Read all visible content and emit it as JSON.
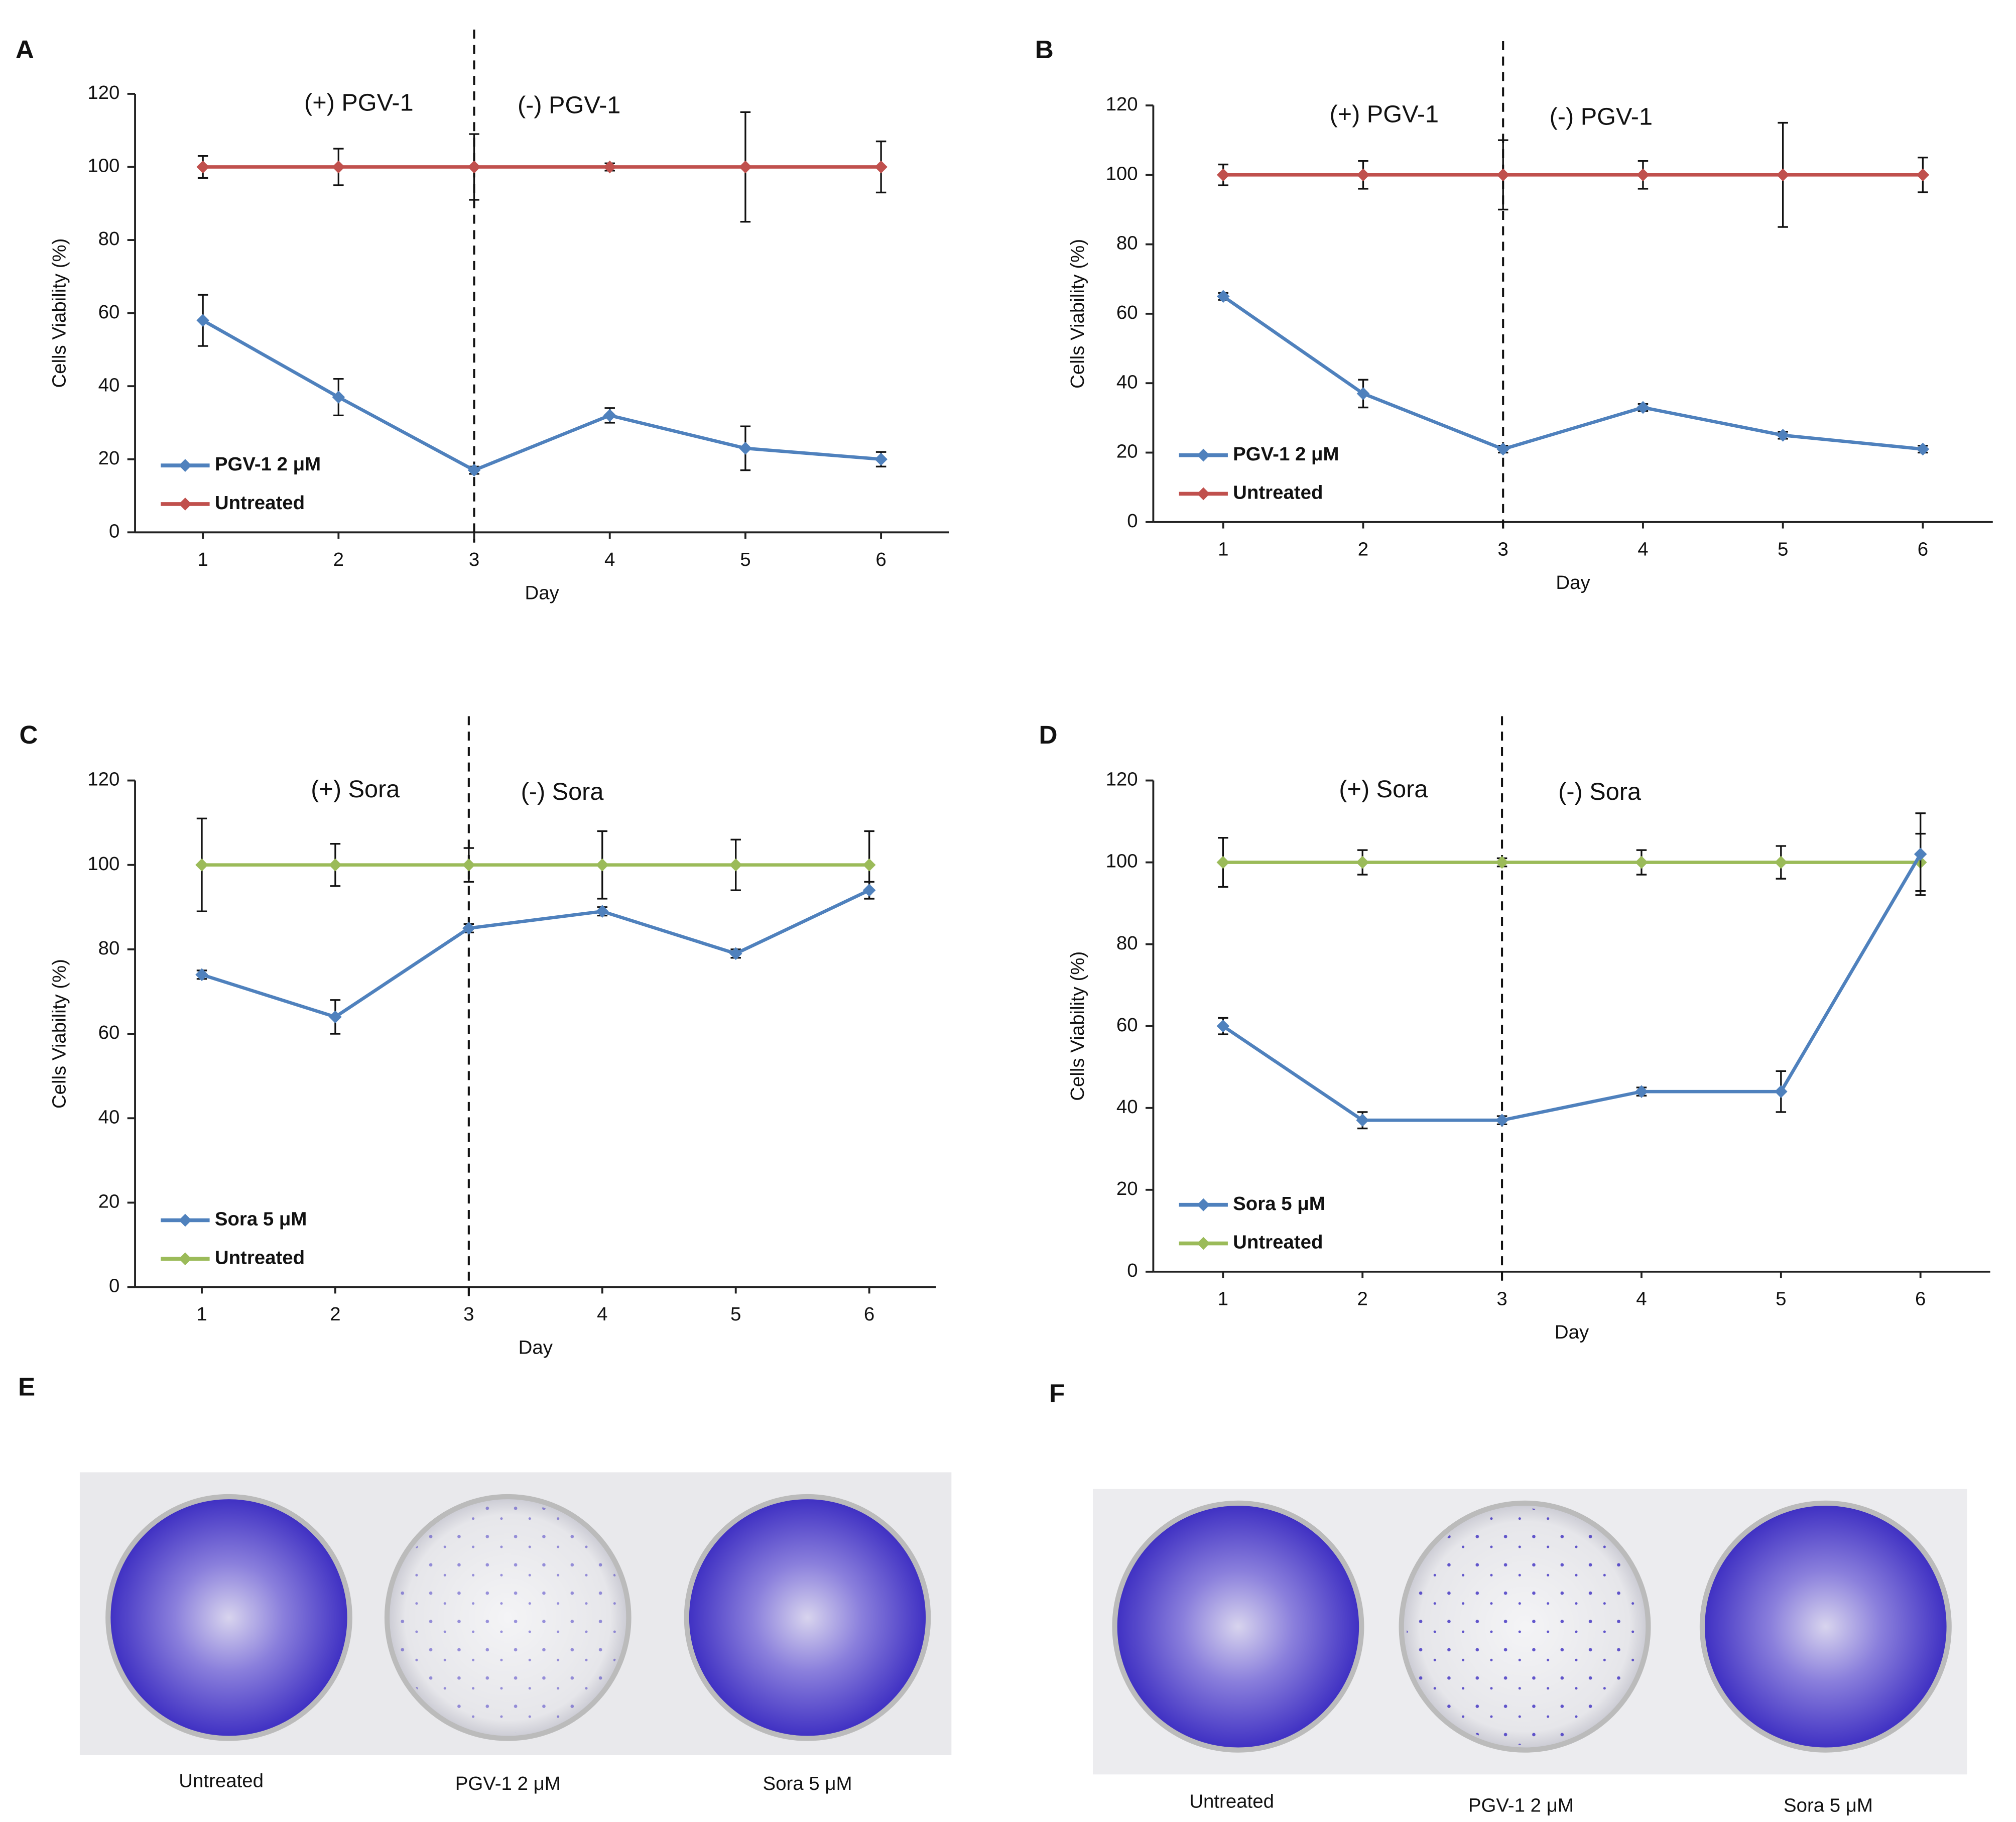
{
  "chart_data": [
    {
      "type": "line",
      "label": "A",
      "x": [
        1,
        2,
        3,
        4,
        5,
        6
      ],
      "xlim": [
        0.5,
        6.5
      ],
      "xticks": [
        1,
        2,
        3,
        4,
        5,
        6
      ],
      "ylim": [
        0,
        120
      ],
      "yticks": [
        0,
        20,
        40,
        60,
        80,
        100,
        120
      ],
      "xlabel": "Day",
      "ylabel": "Cells Viability (%)",
      "vline": 3,
      "annotations": [
        "(+) PGV-1",
        "(-) PGV-1"
      ],
      "legend": "lower left",
      "series": [
        {
          "name": "PGV-1 2 μM",
          "color": "#4f81bd",
          "values": [
            58,
            37,
            17,
            32,
            23,
            20
          ],
          "errors": [
            7,
            5,
            1,
            2,
            6,
            2
          ]
        },
        {
          "name": "Untreated",
          "color": "#c0504d",
          "values": [
            100,
            100,
            100,
            100,
            100,
            100
          ],
          "errors": [
            3,
            5,
            9,
            1,
            15,
            7
          ]
        }
      ]
    },
    {
      "type": "line",
      "label": "B",
      "x": [
        1,
        2,
        3,
        4,
        5,
        6
      ],
      "xlim": [
        0.5,
        6.5
      ],
      "xticks": [
        1,
        2,
        3,
        4,
        5,
        6
      ],
      "ylim": [
        0,
        120
      ],
      "yticks": [
        0,
        20,
        40,
        60,
        80,
        100,
        120
      ],
      "xlabel": "Day",
      "ylabel": "Cells Viability (%)",
      "vline": 3,
      "annotations": [
        "(+) PGV-1",
        "(-) PGV-1"
      ],
      "legend": "lower left",
      "series": [
        {
          "name": "PGV-1 2 μM",
          "color": "#4f81bd",
          "values": [
            65,
            37,
            21,
            33,
            25,
            21
          ],
          "errors": [
            1,
            4,
            1,
            1,
            1,
            1
          ]
        },
        {
          "name": "Untreated",
          "color": "#c0504d",
          "values": [
            100,
            100,
            100,
            100,
            100,
            100
          ],
          "errors": [
            3,
            4,
            10,
            4,
            15,
            5
          ]
        }
      ]
    },
    {
      "type": "line",
      "label": "C",
      "x": [
        1,
        2,
        3,
        4,
        5,
        6
      ],
      "xlim": [
        0.5,
        6.5
      ],
      "xticks": [
        1,
        2,
        3,
        4,
        5,
        6
      ],
      "ylim": [
        0,
        120
      ],
      "yticks": [
        0,
        20,
        40,
        60,
        80,
        100,
        120
      ],
      "xlabel": "Day",
      "ylabel": "Cells Viability (%)",
      "vline": 3,
      "annotations": [
        "(+) Sora",
        "(-) Sora"
      ],
      "legend": "lower left",
      "series": [
        {
          "name": "Sora 5 μM",
          "color": "#4f81bd",
          "values": [
            74,
            64,
            85,
            89,
            79,
            94
          ],
          "errors": [
            1,
            4,
            1,
            1,
            1,
            2
          ]
        },
        {
          "name": "Untreated",
          "color": "#9bbb59",
          "values": [
            100,
            100,
            100,
            100,
            100,
            100
          ],
          "errors": [
            11,
            5,
            4,
            8,
            6,
            8
          ]
        }
      ]
    },
    {
      "type": "line",
      "label": "D",
      "x": [
        1,
        2,
        3,
        4,
        5,
        6
      ],
      "xlim": [
        0.5,
        6.5
      ],
      "xticks": [
        1,
        2,
        3,
        4,
        5,
        6
      ],
      "ylim": [
        0,
        120
      ],
      "yticks": [
        0,
        20,
        40,
        60,
        80,
        100,
        120
      ],
      "xlabel": "Day",
      "ylabel": "Cells Viability (%)",
      "vline": 3,
      "annotations": [
        "(+) Sora",
        "(-) Sora"
      ],
      "legend": "lower left",
      "series": [
        {
          "name": "Sora 5 μM",
          "color": "#4f81bd",
          "values": [
            60,
            37,
            37,
            44,
            44,
            102
          ],
          "errors": [
            2,
            2,
            1,
            1,
            5,
            10
          ]
        },
        {
          "name": "Untreated",
          "color": "#9bbb59",
          "values": [
            100,
            100,
            100,
            100,
            100,
            100
          ],
          "errors": [
            6,
            3,
            1,
            3,
            4,
            7
          ]
        }
      ]
    }
  ],
  "panels": {
    "E": {
      "label": "E",
      "labels": [
        "Untreated",
        "PGV-1 2 μM",
        "Sora 5 μM"
      ]
    },
    "F": {
      "label": "F",
      "labels": [
        "Untreated",
        "PGV-1 2 μM",
        "Sora 5 μM"
      ]
    }
  }
}
